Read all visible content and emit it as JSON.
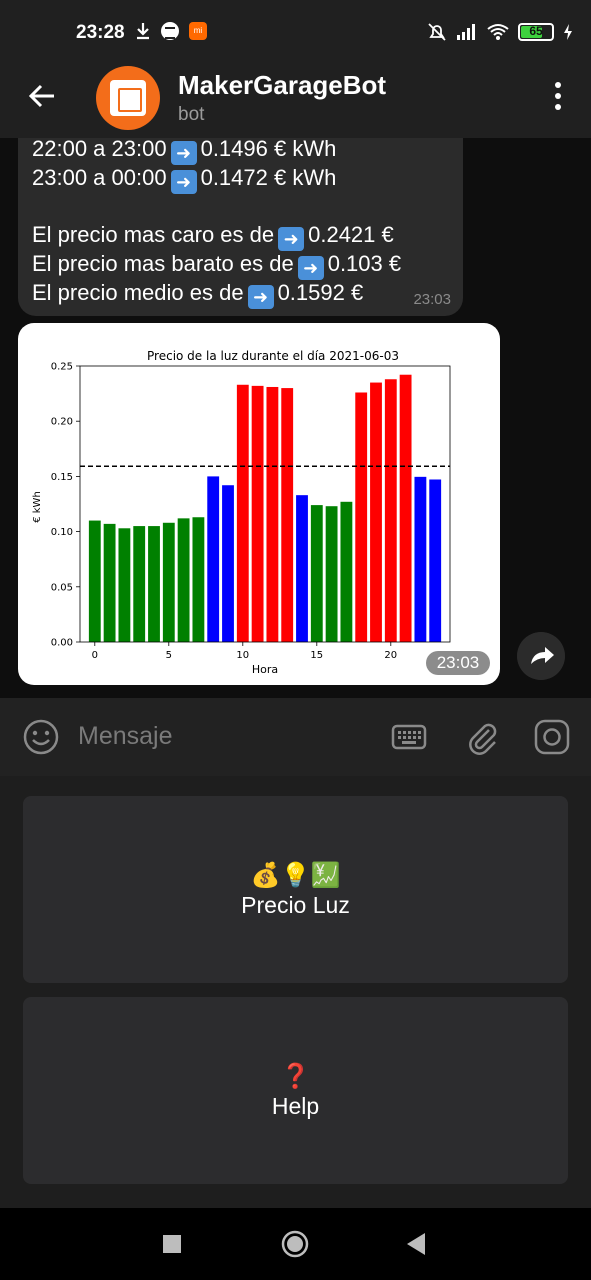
{
  "status_bar": {
    "time": "23:28",
    "battery": "65",
    "icons": [
      "download-icon",
      "spotify-icon",
      "mi-icon",
      "mute-icon",
      "signal-icon",
      "wifi-icon",
      "battery-icon",
      "charging-icon"
    ]
  },
  "header": {
    "title": "MakerGarageBot",
    "subtitle": "bot"
  },
  "message": {
    "lines": [
      {
        "prefix": "22:00 a 23:00",
        "suffix": "0.1496 € kWh"
      },
      {
        "prefix": "23:00 a 00:00",
        "suffix": "0.1472 € kWh"
      },
      {
        "prefix": "El precio mas caro es de",
        "suffix": "0.2421 €"
      },
      {
        "prefix": "El precio mas barato es de",
        "suffix": "0.103 €"
      },
      {
        "prefix": "El precio medio es de",
        "suffix": "0.1592 €"
      }
    ],
    "time": "23:03"
  },
  "image_message": {
    "time": "23:03"
  },
  "chart_data": {
    "type": "bar",
    "title": "Precio de la luz durante el día 2021-06-03",
    "xlabel": "Hora",
    "ylabel": "€ kWh",
    "x": [
      0,
      1,
      2,
      3,
      4,
      5,
      6,
      7,
      8,
      9,
      10,
      11,
      12,
      13,
      14,
      15,
      16,
      17,
      18,
      19,
      20,
      21,
      22,
      23
    ],
    "values": [
      0.11,
      0.107,
      0.103,
      0.105,
      0.105,
      0.108,
      0.112,
      0.113,
      0.15,
      0.142,
      0.233,
      0.232,
      0.231,
      0.23,
      0.133,
      0.124,
      0.123,
      0.127,
      0.226,
      0.235,
      0.238,
      0.2421,
      0.1496,
      0.1472
    ],
    "bar_colors": [
      "green",
      "green",
      "green",
      "green",
      "green",
      "green",
      "green",
      "green",
      "blue",
      "blue",
      "red",
      "red",
      "red",
      "red",
      "blue",
      "green",
      "green",
      "green",
      "red",
      "red",
      "red",
      "red",
      "blue",
      "blue"
    ],
    "mean_line": 0.1592,
    "xticks": [
      0,
      5,
      10,
      15,
      20
    ],
    "yticks": [
      "0.00",
      "0.05",
      "0.10",
      "0.15",
      "0.20",
      "0.25"
    ],
    "ylim": [
      0,
      0.25
    ],
    "xlim": [
      -1,
      24
    ],
    "colors": {
      "green": "#008000",
      "blue": "#0000ff",
      "red": "#ff0000"
    }
  },
  "input": {
    "placeholder": "Mensaje"
  },
  "keyboard": {
    "buttons": [
      {
        "emoji": "💰💡💹",
        "label": "Precio Luz"
      },
      {
        "emoji": "❓",
        "label": "Help"
      }
    ]
  },
  "colors": {
    "header_bg": "#202020",
    "bubble_bg": "#2b2b2b",
    "keyboard_button_bg": "#2c2c2e"
  }
}
